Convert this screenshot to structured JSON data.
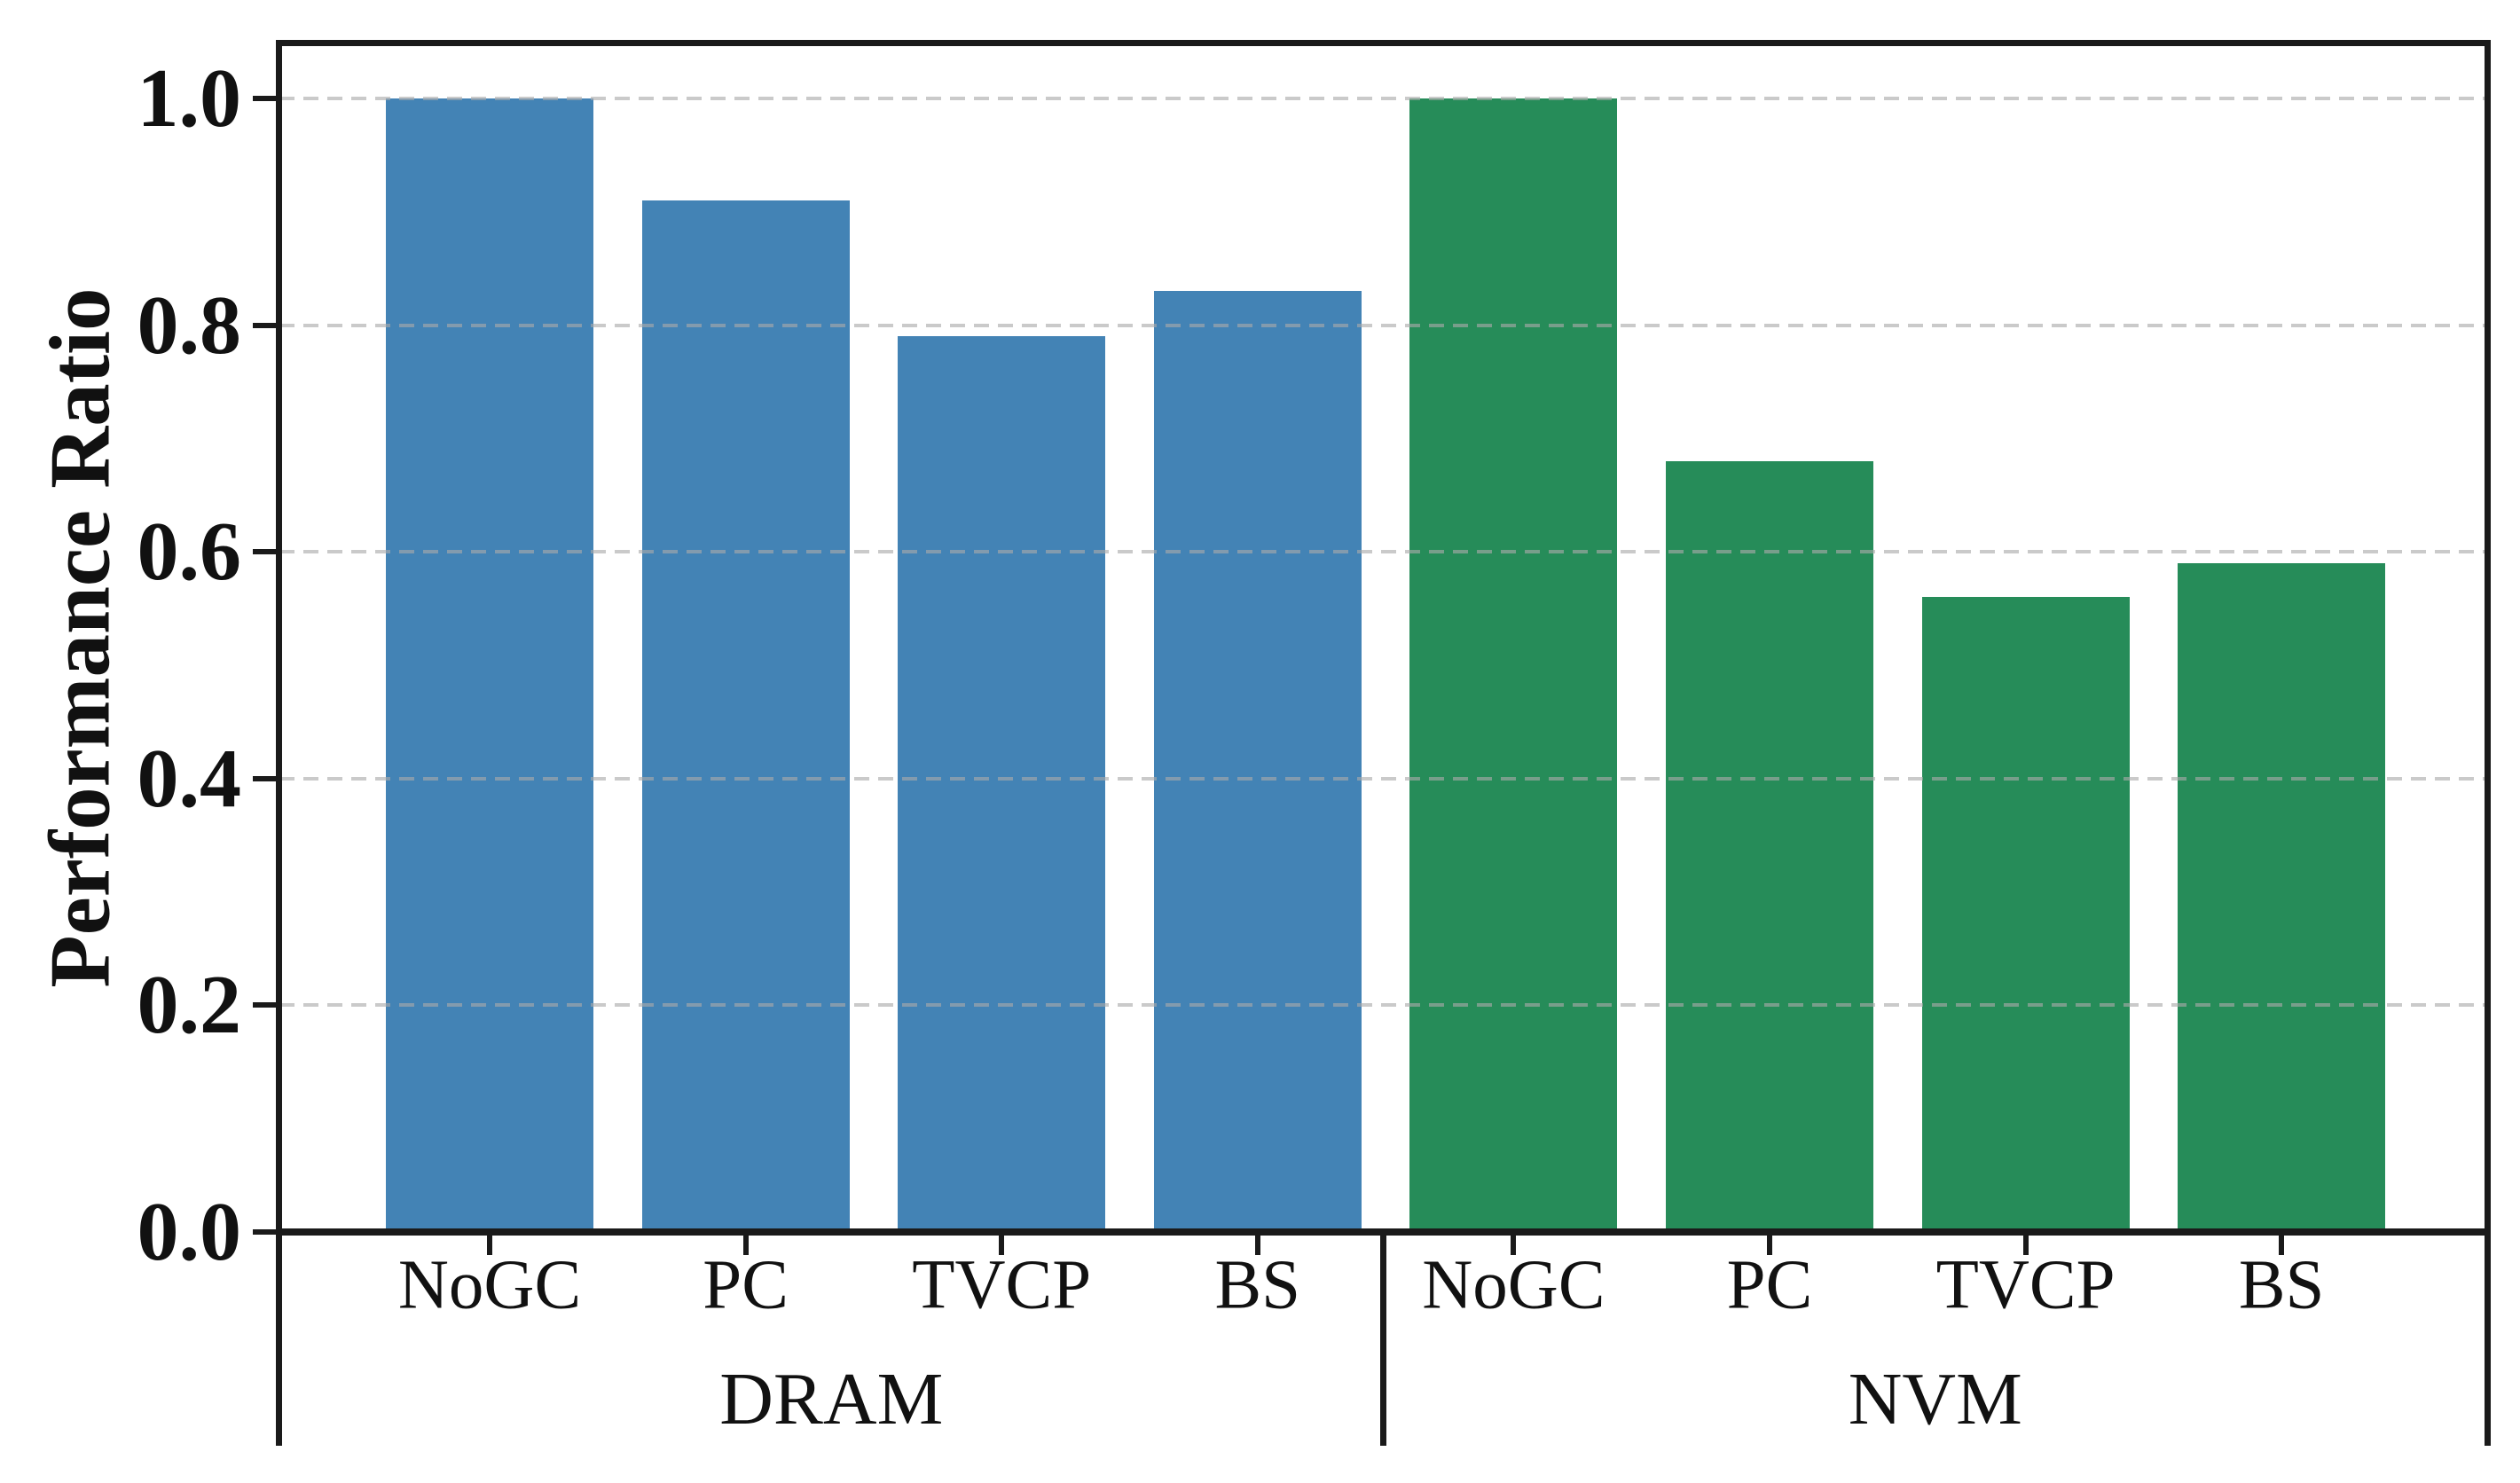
{
  "chart_data": {
    "type": "bar",
    "title": "",
    "ylabel": "Performance Ratio",
    "xlabel": "",
    "ylim": [
      0,
      1.05
    ],
    "yticks": [
      0.0,
      0.2,
      0.4,
      0.6,
      0.8,
      1.0
    ],
    "ytick_labels": [
      "0.0",
      "0.2",
      "0.4",
      "0.6",
      "0.8",
      "1.0"
    ],
    "grid": "horizontal-dashed",
    "gridline_color": "#cfcfcf",
    "legend_position": "none",
    "categories": [
      "NoGC",
      "PC",
      "TVCP",
      "BS"
    ],
    "series": [
      {
        "name": "DRAM",
        "color": "#4383b5",
        "categories": [
          "NoGC",
          "PC",
          "TVCP",
          "BS"
        ],
        "values": [
          1.0,
          0.91,
          0.79,
          0.83
        ]
      },
      {
        "name": "NVM",
        "color": "#268c59",
        "categories": [
          "NoGC",
          "PC",
          "TVCP",
          "BS"
        ],
        "values": [
          1.0,
          0.68,
          0.56,
          0.59
        ]
      }
    ],
    "axis_color": "#1a1a1a",
    "text_color": "#111111"
  }
}
